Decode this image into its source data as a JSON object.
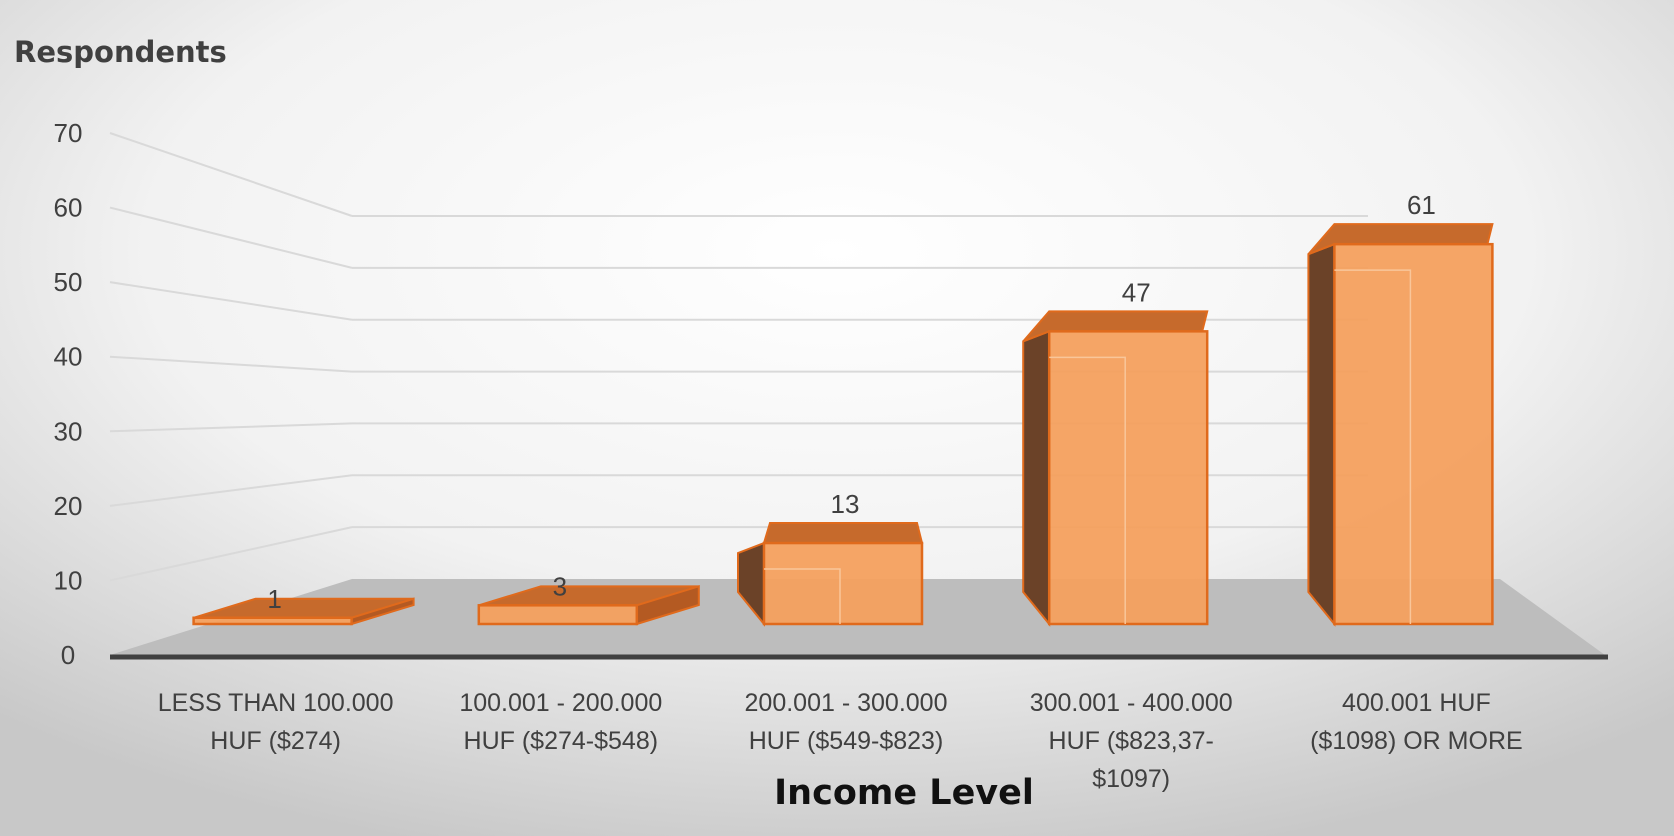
{
  "chart_data": {
    "type": "bar",
    "style": "3d-column",
    "title": "",
    "ylabel": "Respondents",
    "xlabel": "Income Level",
    "ylim": [
      0,
      70
    ],
    "yticks": [
      "0",
      "10",
      "20",
      "30",
      "40",
      "50",
      "60",
      "70"
    ],
    "categories": [
      [
        "LESS THAN 100.000",
        "HUF ($274)"
      ],
      [
        "100.001 - 200.000",
        "HUF ($274-$548)"
      ],
      [
        "200.001 - 300.000",
        "HUF ($549-$823)"
      ],
      [
        "300.001 - 400.000",
        "HUF ($823,37-",
        "$1097)"
      ],
      [
        "400.001 HUF",
        "($1098) OR MORE"
      ]
    ],
    "values": [
      1,
      3,
      13,
      47,
      61
    ],
    "data_labels": [
      "1",
      "3",
      "13",
      "47",
      "61"
    ],
    "grid": true,
    "legend": "none",
    "colors": {
      "bar_front": "#F4A05E",
      "bar_edge": "#E06A1C",
      "bar_side": "#6B4228",
      "floor": "#BDBDBD",
      "gridline": "#D9D9D9",
      "axis": "#404040"
    }
  }
}
